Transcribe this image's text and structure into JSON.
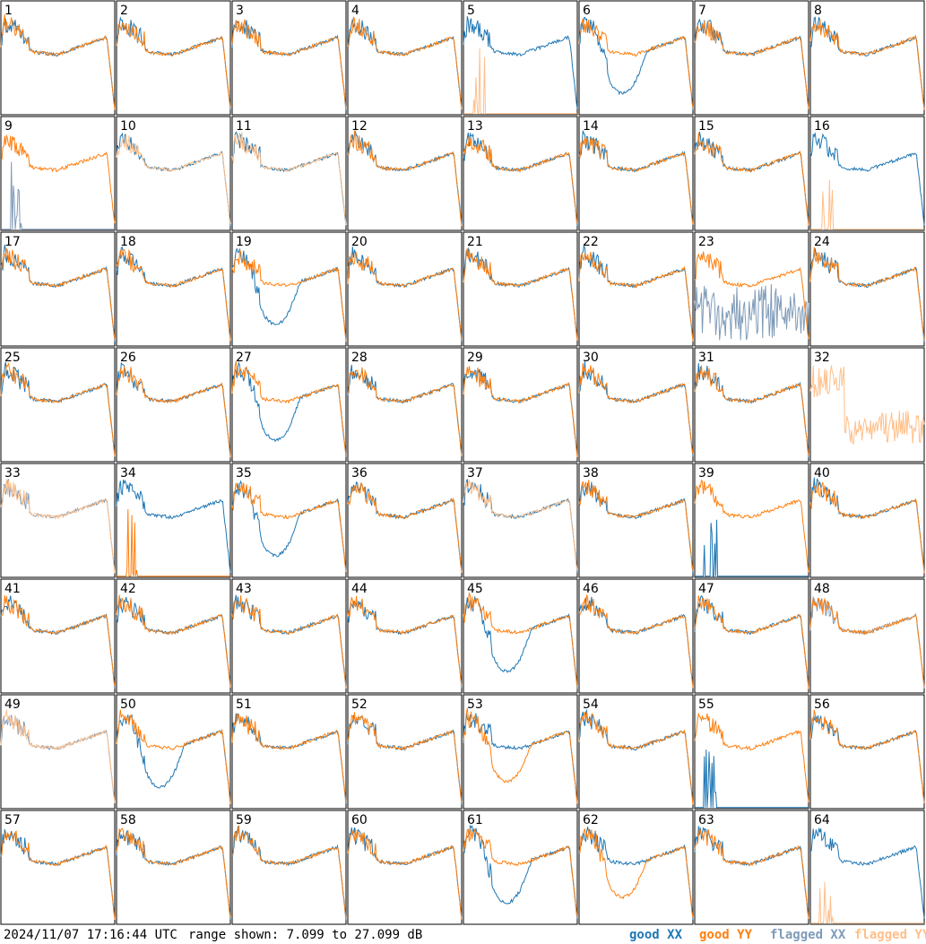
{
  "footer": {
    "timestamp": "2024/11/07 17:16:44 UTC",
    "range_text": "range shown: 7.099 to 27.099 dB"
  },
  "legend": {
    "good_xx": "good XX",
    "good_yy": "good YY",
    "flagged_xx": "flagged XX",
    "flagged_yy": "flagged YY"
  },
  "colors": {
    "good_xx": "#1f77b4",
    "good_yy": "#ff7f0e",
    "flagged_xx": "#7f9bb8",
    "flagged_yy": "#ffbf8a"
  },
  "chart_data": {
    "type": "line",
    "layout": "8x8 grid of small panels",
    "y_range_db": [
      7.099,
      27.099
    ],
    "grid": false,
    "panels": [
      {
        "id": "1",
        "xx": "good",
        "yy": "good",
        "shape": "normal"
      },
      {
        "id": "2",
        "xx": "good",
        "yy": "good",
        "shape": "normal"
      },
      {
        "id": "3",
        "xx": "good",
        "yy": "good",
        "shape": "normal"
      },
      {
        "id": "4",
        "xx": "good",
        "yy": "good",
        "shape": "normal"
      },
      {
        "id": "5",
        "xx": "good",
        "yy": "flagged",
        "shape": "xx-dip-yy-low"
      },
      {
        "id": "6",
        "xx": "good",
        "yy": "good",
        "shape": "xx-dip"
      },
      {
        "id": "7",
        "xx": "good",
        "yy": "good",
        "shape": "normal"
      },
      {
        "id": "8",
        "xx": "good",
        "yy": "good",
        "shape": "normal"
      },
      {
        "id": "9",
        "xx": "flagged",
        "yy": "good",
        "shape": "xx-spikes"
      },
      {
        "id": "10",
        "xx": "good",
        "yy": "flagged",
        "shape": "normal"
      },
      {
        "id": "11",
        "xx": "good",
        "yy": "flagged",
        "shape": "normal"
      },
      {
        "id": "12",
        "xx": "good",
        "yy": "good",
        "shape": "normal"
      },
      {
        "id": "13",
        "xx": "good",
        "yy": "good",
        "shape": "normal"
      },
      {
        "id": "14",
        "xx": "good",
        "yy": "good",
        "shape": "normal"
      },
      {
        "id": "15",
        "xx": "good",
        "yy": "good",
        "shape": "normal"
      },
      {
        "id": "16",
        "xx": "good",
        "yy": "flagged",
        "shape": "yy-low"
      },
      {
        "id": "17",
        "xx": "good",
        "yy": "good",
        "shape": "normal"
      },
      {
        "id": "18",
        "xx": "good",
        "yy": "good",
        "shape": "normal"
      },
      {
        "id": "19",
        "xx": "good",
        "yy": "good",
        "shape": "xx-dip"
      },
      {
        "id": "20",
        "xx": "good",
        "yy": "good",
        "shape": "normal"
      },
      {
        "id": "21",
        "xx": "good",
        "yy": "good",
        "shape": "normal"
      },
      {
        "id": "22",
        "xx": "good",
        "yy": "good",
        "shape": "normal"
      },
      {
        "id": "23",
        "xx": "flagged",
        "yy": "good",
        "shape": "xx-noise"
      },
      {
        "id": "24",
        "xx": "good",
        "yy": "good",
        "shape": "normal"
      },
      {
        "id": "25",
        "xx": "good",
        "yy": "good",
        "shape": "normal"
      },
      {
        "id": "26",
        "xx": "good",
        "yy": "good",
        "shape": "normal"
      },
      {
        "id": "27",
        "xx": "good",
        "yy": "good",
        "shape": "xx-dip"
      },
      {
        "id": "28",
        "xx": "good",
        "yy": "good",
        "shape": "normal"
      },
      {
        "id": "29",
        "xx": "good",
        "yy": "good",
        "shape": "normal"
      },
      {
        "id": "30",
        "xx": "good",
        "yy": "good",
        "shape": "normal"
      },
      {
        "id": "31",
        "xx": "good",
        "yy": "good",
        "shape": "normal"
      },
      {
        "id": "32",
        "xx": "none",
        "yy": "flagged",
        "shape": "yy-noise"
      },
      {
        "id": "33",
        "xx": "flagged",
        "yy": "flagged",
        "shape": "normal"
      },
      {
        "id": "34",
        "xx": "good",
        "yy": "good",
        "shape": "yy-spikes"
      },
      {
        "id": "35",
        "xx": "good",
        "yy": "good",
        "shape": "xx-dip"
      },
      {
        "id": "36",
        "xx": "good",
        "yy": "good",
        "shape": "normal"
      },
      {
        "id": "37",
        "xx": "good",
        "yy": "flagged",
        "shape": "normal"
      },
      {
        "id": "38",
        "xx": "good",
        "yy": "good",
        "shape": "normal"
      },
      {
        "id": "39",
        "xx": "good",
        "yy": "good",
        "shape": "xx-spikes"
      },
      {
        "id": "40",
        "xx": "good",
        "yy": "good",
        "shape": "normal"
      },
      {
        "id": "41",
        "xx": "good",
        "yy": "good",
        "shape": "normal"
      },
      {
        "id": "42",
        "xx": "good",
        "yy": "good",
        "shape": "normal"
      },
      {
        "id": "43",
        "xx": "good",
        "yy": "good",
        "shape": "normal"
      },
      {
        "id": "44",
        "xx": "good",
        "yy": "good",
        "shape": "normal"
      },
      {
        "id": "45",
        "xx": "good",
        "yy": "good",
        "shape": "xx-dip"
      },
      {
        "id": "46",
        "xx": "good",
        "yy": "good",
        "shape": "normal"
      },
      {
        "id": "47",
        "xx": "good",
        "yy": "good",
        "shape": "normal"
      },
      {
        "id": "48",
        "xx": "flagged",
        "yy": "good",
        "shape": "normal"
      },
      {
        "id": "49",
        "xx": "flagged",
        "yy": "flagged",
        "shape": "normal"
      },
      {
        "id": "50",
        "xx": "good",
        "yy": "good",
        "shape": "xx-dip"
      },
      {
        "id": "51",
        "xx": "good",
        "yy": "good",
        "shape": "normal"
      },
      {
        "id": "52",
        "xx": "good",
        "yy": "good",
        "shape": "normal"
      },
      {
        "id": "53",
        "xx": "good",
        "yy": "good",
        "shape": "yy-dip"
      },
      {
        "id": "54",
        "xx": "good",
        "yy": "good",
        "shape": "normal"
      },
      {
        "id": "55",
        "xx": "good",
        "yy": "good",
        "shape": "xx-spikes"
      },
      {
        "id": "56",
        "xx": "good",
        "yy": "good",
        "shape": "normal"
      },
      {
        "id": "57",
        "xx": "good",
        "yy": "good",
        "shape": "normal"
      },
      {
        "id": "58",
        "xx": "good",
        "yy": "good",
        "shape": "normal"
      },
      {
        "id": "59",
        "xx": "good",
        "yy": "good",
        "shape": "normal"
      },
      {
        "id": "60",
        "xx": "good",
        "yy": "good",
        "shape": "normal"
      },
      {
        "id": "61",
        "xx": "good",
        "yy": "good",
        "shape": "xx-dip"
      },
      {
        "id": "62",
        "xx": "good",
        "yy": "good",
        "shape": "yy-dip"
      },
      {
        "id": "63",
        "xx": "good",
        "yy": "good",
        "shape": "normal"
      },
      {
        "id": "64",
        "xx": "good",
        "yy": "flagged",
        "shape": "yy-low"
      }
    ]
  }
}
